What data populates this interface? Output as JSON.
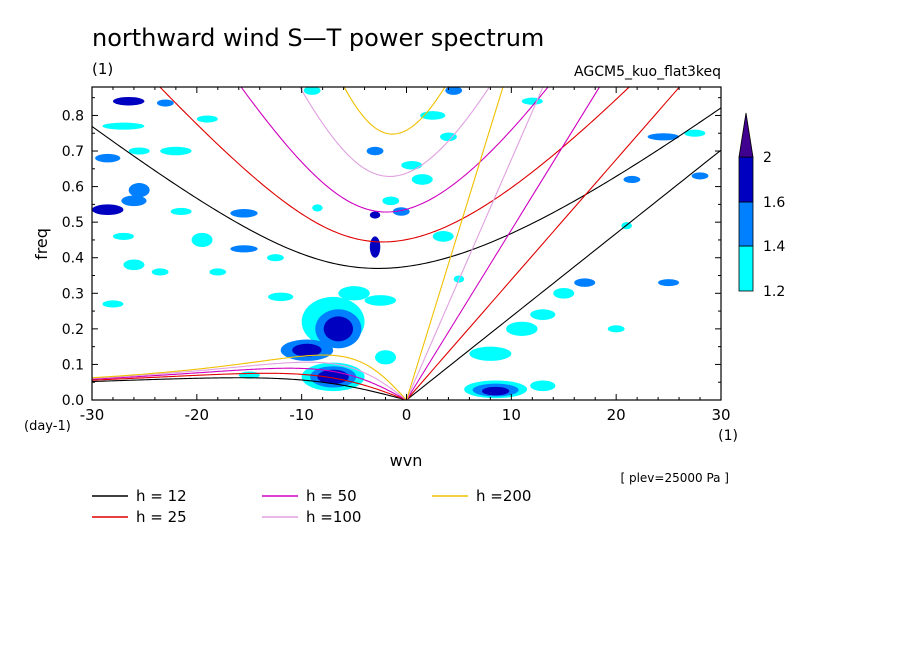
{
  "chart_data": {
    "type": "heatmap",
    "title": "northward wind S—T power spectrum",
    "subtitle_left": "(1)",
    "subtitle_right": "AGCM5_kuo_flat3keq",
    "xlabel": "wvn",
    "ylabel": "freq",
    "x_unit": "(1)",
    "y_unit": "(day-1)",
    "level_note": "[ plev=25000 Pa ]",
    "xlim": [
      -30,
      30
    ],
    "ylim": [
      0,
      0.88
    ],
    "x_ticks": [
      "-30",
      "-20",
      "-10",
      "0",
      "10",
      "20",
      "30"
    ],
    "y_ticks": [
      "0.0",
      "0.1",
      "0.2",
      "0.3",
      "0.4",
      "0.5",
      "0.6",
      "0.7",
      "0.8"
    ],
    "x_tick_values": [
      -30,
      -20,
      -10,
      0,
      10,
      20,
      30
    ],
    "y_tick_values": [
      0,
      0.1,
      0.2,
      0.3,
      0.4,
      0.5,
      0.6,
      0.7,
      0.8
    ],
    "colorbar": {
      "levels": [
        "1.2",
        "1.4",
        "1.6",
        "2"
      ],
      "level_values": [
        1.2,
        1.4,
        1.6,
        2.0
      ],
      "colors": [
        "#00ffff",
        "#0080ff",
        "#0000c0",
        "#400090"
      ]
    },
    "dispersion_curves": [
      {
        "label": "h = 12",
        "h": 12,
        "color": "#000000"
      },
      {
        "label": "h = 25",
        "h": 25,
        "color": "#e00000"
      },
      {
        "label": "h = 50",
        "h": 50,
        "color": "#d000c0"
      },
      {
        "label": "h =100",
        "h": 100,
        "color": "#e0a0e0"
      },
      {
        "label": "h =200",
        "h": 200,
        "color": "#f0c000"
      }
    ],
    "power_blobs": [
      {
        "x": -26.5,
        "y": 0.84,
        "rx": 1.5,
        "ry": 0.012,
        "level": 3
      },
      {
        "x": -23,
        "y": 0.835,
        "rx": 0.8,
        "ry": 0.01,
        "level": 2
      },
      {
        "x": -27,
        "y": 0.77,
        "rx": 2,
        "ry": 0.01,
        "level": 1
      },
      {
        "x": -19,
        "y": 0.79,
        "rx": 1,
        "ry": 0.01,
        "level": 1
      },
      {
        "x": -28.5,
        "y": 0.68,
        "rx": 1.2,
        "ry": 0.012,
        "level": 2
      },
      {
        "x": -25.5,
        "y": 0.7,
        "rx": 1,
        "ry": 0.01,
        "level": 1
      },
      {
        "x": -22,
        "y": 0.7,
        "rx": 1.5,
        "ry": 0.012,
        "level": 1
      },
      {
        "x": -28.5,
        "y": 0.535,
        "rx": 1.5,
        "ry": 0.015,
        "level": 3
      },
      {
        "x": -26,
        "y": 0.56,
        "rx": 1.2,
        "ry": 0.015,
        "level": 2
      },
      {
        "x": -25.5,
        "y": 0.59,
        "rx": 1,
        "ry": 0.02,
        "level": 2
      },
      {
        "x": -21.5,
        "y": 0.53,
        "rx": 1,
        "ry": 0.01,
        "level": 1
      },
      {
        "x": -15.5,
        "y": 0.525,
        "rx": 1.3,
        "ry": 0.012,
        "level": 2
      },
      {
        "x": -27,
        "y": 0.46,
        "rx": 1,
        "ry": 0.01,
        "level": 1
      },
      {
        "x": -19.5,
        "y": 0.45,
        "rx": 1,
        "ry": 0.02,
        "level": 1
      },
      {
        "x": -15.5,
        "y": 0.425,
        "rx": 1.3,
        "ry": 0.01,
        "level": 2
      },
      {
        "x": -8.5,
        "y": 0.54,
        "rx": 0.5,
        "ry": 0.01,
        "level": 1
      },
      {
        "x": -26,
        "y": 0.38,
        "rx": 1,
        "ry": 0.015,
        "level": 1
      },
      {
        "x": -23.5,
        "y": 0.36,
        "rx": 0.8,
        "ry": 0.01,
        "level": 1
      },
      {
        "x": -12.5,
        "y": 0.4,
        "rx": 0.8,
        "ry": 0.01,
        "level": 1
      },
      {
        "x": -3,
        "y": 0.43,
        "rx": 0.5,
        "ry": 0.03,
        "level": 3
      },
      {
        "x": -3,
        "y": 0.52,
        "rx": 0.5,
        "ry": 0.01,
        "level": 3
      },
      {
        "x": -1.5,
        "y": 0.56,
        "rx": 0.8,
        "ry": 0.012,
        "level": 1
      },
      {
        "x": -3,
        "y": 0.7,
        "rx": 0.8,
        "ry": 0.012,
        "level": 2
      },
      {
        "x": 2.5,
        "y": 0.8,
        "rx": 1.2,
        "ry": 0.012,
        "level": 1
      },
      {
        "x": 1.5,
        "y": 0.62,
        "rx": 1,
        "ry": 0.015,
        "level": 1
      },
      {
        "x": -0.5,
        "y": 0.53,
        "rx": 0.8,
        "ry": 0.012,
        "level": 2
      },
      {
        "x": 3.5,
        "y": 0.46,
        "rx": 1,
        "ry": 0.015,
        "level": 1
      },
      {
        "x": 5,
        "y": 0.34,
        "rx": 0.5,
        "ry": 0.01,
        "level": 1
      },
      {
        "x": 4.5,
        "y": 0.87,
        "rx": 0.8,
        "ry": 0.012,
        "level": 2
      },
      {
        "x": 12,
        "y": 0.84,
        "rx": 1,
        "ry": 0.01,
        "level": 1
      },
      {
        "x": -9,
        "y": 0.87,
        "rx": 0.8,
        "ry": 0.012,
        "level": 1
      },
      {
        "x": -12,
        "y": 0.29,
        "rx": 1.2,
        "ry": 0.012,
        "level": 1
      },
      {
        "x": -18,
        "y": 0.36,
        "rx": 0.8,
        "ry": 0.01,
        "level": 1
      },
      {
        "x": -28,
        "y": 0.27,
        "rx": 1,
        "ry": 0.01,
        "level": 1
      },
      {
        "x": -7,
        "y": 0.22,
        "rx": 3,
        "ry": 0.07,
        "level": 1
      },
      {
        "x": -6.5,
        "y": 0.2,
        "rx": 2.2,
        "ry": 0.055,
        "level": 2
      },
      {
        "x": -6.5,
        "y": 0.2,
        "rx": 1.4,
        "ry": 0.035,
        "level": 3
      },
      {
        "x": -9.5,
        "y": 0.14,
        "rx": 2.5,
        "ry": 0.03,
        "level": 2
      },
      {
        "x": -9.5,
        "y": 0.14,
        "rx": 1.4,
        "ry": 0.018,
        "level": 3
      },
      {
        "x": -7,
        "y": 0.065,
        "rx": 3,
        "ry": 0.04,
        "level": 1
      },
      {
        "x": -7,
        "y": 0.065,
        "rx": 2.2,
        "ry": 0.03,
        "level": 2
      },
      {
        "x": -7,
        "y": 0.065,
        "rx": 1.5,
        "ry": 0.02,
        "level": 3
      },
      {
        "x": -5,
        "y": 0.3,
        "rx": 1.5,
        "ry": 0.02,
        "level": 1
      },
      {
        "x": -2.5,
        "y": 0.28,
        "rx": 1.5,
        "ry": 0.015,
        "level": 1
      },
      {
        "x": -15,
        "y": 0.07,
        "rx": 1,
        "ry": 0.01,
        "level": 1
      },
      {
        "x": -2,
        "y": 0.12,
        "rx": 1,
        "ry": 0.02,
        "level": 1
      },
      {
        "x": 8.5,
        "y": 0.03,
        "rx": 3,
        "ry": 0.025,
        "level": 1
      },
      {
        "x": 8.5,
        "y": 0.028,
        "rx": 2.2,
        "ry": 0.018,
        "level": 2
      },
      {
        "x": 8.5,
        "y": 0.025,
        "rx": 1.3,
        "ry": 0.012,
        "level": 3
      },
      {
        "x": 13,
        "y": 0.04,
        "rx": 1.2,
        "ry": 0.015,
        "level": 1
      },
      {
        "x": 8,
        "y": 0.13,
        "rx": 2,
        "ry": 0.02,
        "level": 1
      },
      {
        "x": 11,
        "y": 0.2,
        "rx": 1.5,
        "ry": 0.02,
        "level": 1
      },
      {
        "x": 13,
        "y": 0.24,
        "rx": 1.2,
        "ry": 0.015,
        "level": 1
      },
      {
        "x": 15,
        "y": 0.3,
        "rx": 1,
        "ry": 0.015,
        "level": 1
      },
      {
        "x": 17,
        "y": 0.33,
        "rx": 1,
        "ry": 0.012,
        "level": 2
      },
      {
        "x": 25,
        "y": 0.33,
        "rx": 1,
        "ry": 0.01,
        "level": 2
      },
      {
        "x": 20,
        "y": 0.2,
        "rx": 0.8,
        "ry": 0.01,
        "level": 1
      },
      {
        "x": 24.5,
        "y": 0.74,
        "rx": 1.5,
        "ry": 0.01,
        "level": 2
      },
      {
        "x": 27.5,
        "y": 0.75,
        "rx": 1,
        "ry": 0.01,
        "level": 1
      },
      {
        "x": 21.5,
        "y": 0.62,
        "rx": 0.8,
        "ry": 0.01,
        "level": 2
      },
      {
        "x": 28,
        "y": 0.63,
        "rx": 0.8,
        "ry": 0.01,
        "level": 2
      },
      {
        "x": 21,
        "y": 0.49,
        "rx": 0.5,
        "ry": 0.01,
        "level": 1
      },
      {
        "x": 4,
        "y": 0.74,
        "rx": 0.8,
        "ry": 0.012,
        "level": 1
      },
      {
        "x": 0.5,
        "y": 0.66,
        "rx": 1,
        "ry": 0.012,
        "level": 1
      }
    ]
  }
}
